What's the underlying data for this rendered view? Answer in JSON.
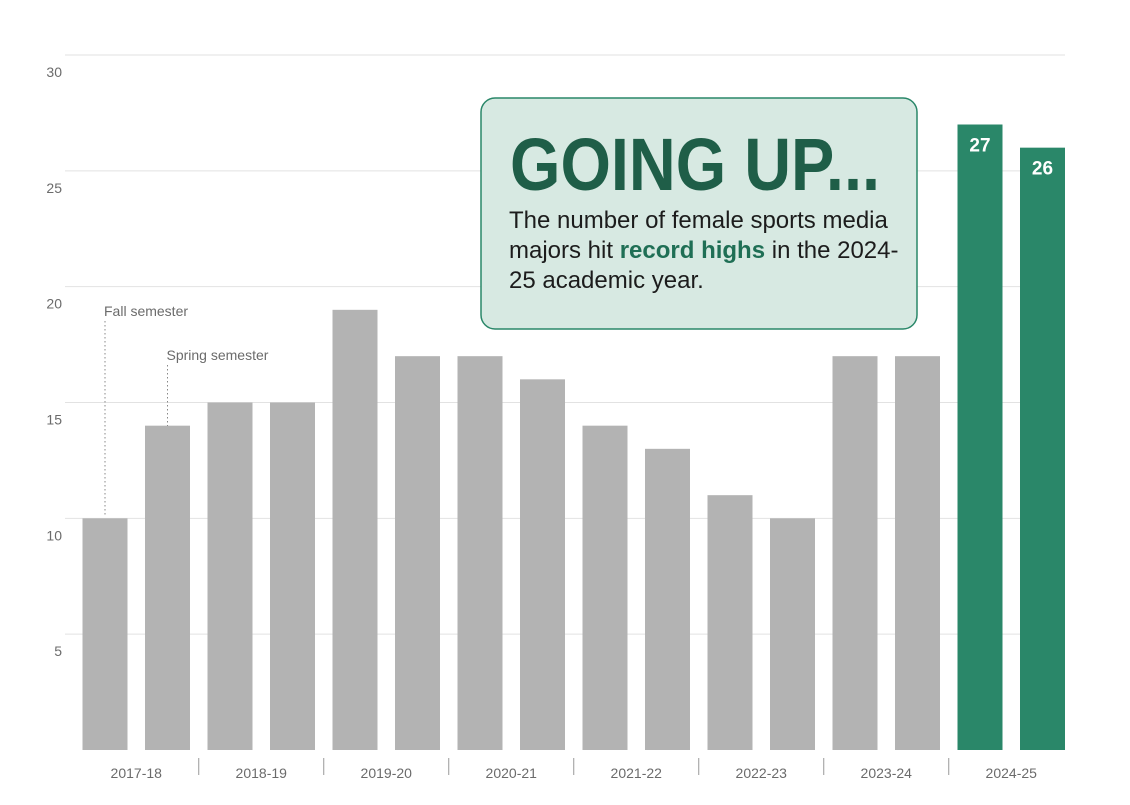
{
  "chart_data": {
    "type": "bar",
    "categories": [
      "2017-18",
      "2018-19",
      "2019-20",
      "2020-21",
      "2021-22",
      "2022-23",
      "2023-24",
      "2024-25"
    ],
    "color": "#b3b3b3",
    "series": [
      {
        "name": "Fall semester",
        "values": [
          10,
          15,
          19,
          17,
          14,
          11,
          17,
          27
        ],
        "colors": [
          "#b3b3b3",
          "#b3b3b3",
          "#b3b3b3",
          "#b3b3b3",
          "#b3b3b3",
          "#b3b3b3",
          "#b3b3b3",
          "#2a8769"
        ]
      },
      {
        "name": "Spring semester",
        "values": [
          14,
          15,
          17,
          16,
          13,
          10,
          17,
          26
        ],
        "colors": [
          "#b3b3b3",
          "#b3b3b3",
          "#b3b3b3",
          "#b3b3b3",
          "#b3b3b3",
          "#b3b3b3",
          "#b3b3b3",
          "#2a8769"
        ]
      }
    ],
    "ylim": [
      0,
      30
    ],
    "yticks": [
      5,
      10,
      15,
      20,
      25,
      30
    ],
    "grid": true,
    "annotation": {
      "title": "GOING UP...",
      "body": [
        "The number of female sports media majors hit ",
        "record highs",
        " in the 2024-25 academic year."
      ]
    }
  }
}
